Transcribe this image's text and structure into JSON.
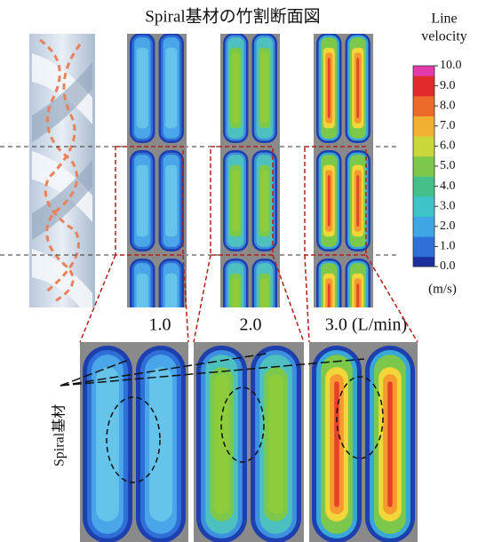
{
  "title": "Spiral基材の竹割断面図",
  "colorbar": {
    "title_lines": [
      "Line",
      "velocity"
    ],
    "unit": "(m/s)",
    "range": [
      0,
      10
    ],
    "ticks": [
      {
        "value": 10,
        "label": "10.0"
      },
      {
        "value": 9,
        "label": "9.0"
      },
      {
        "value": 8,
        "label": "8.0"
      },
      {
        "value": 7,
        "label": "7.0"
      },
      {
        "value": 6,
        "label": "6.0"
      },
      {
        "value": 5,
        "label": "5.0"
      },
      {
        "value": 4,
        "label": "4.0"
      },
      {
        "value": 3,
        "label": "3.0"
      },
      {
        "value": 2,
        "label": "2.0"
      },
      {
        "value": 1,
        "label": "1.0"
      },
      {
        "value": 0,
        "label": "0.0"
      }
    ]
  },
  "flow_rates": [
    "1.0",
    "2.0",
    "3.0 (L/min)"
  ],
  "side_label": "Spiral基材"
}
